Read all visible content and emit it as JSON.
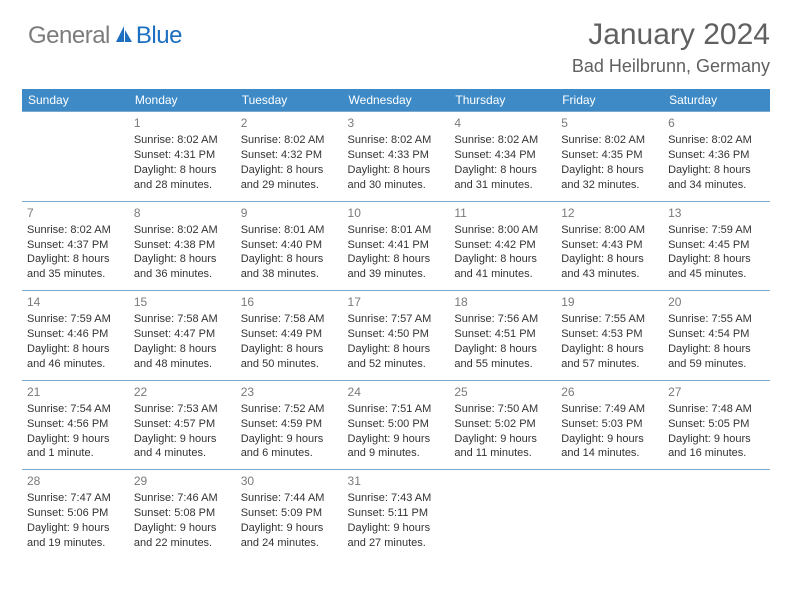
{
  "logo": {
    "general": "General",
    "blue": "Blue"
  },
  "title": "January 2024",
  "location": "Bad Heilbrunn, Germany",
  "colors": {
    "header_bg": "#3d8ac7",
    "header_text": "#ffffff",
    "rule": "#7ba8cf",
    "logo_gray": "#7c7c7c",
    "logo_blue": "#1d6fc0",
    "title_color": "#606060",
    "body_text": "#333333"
  },
  "weekdays": [
    "Sunday",
    "Monday",
    "Tuesday",
    "Wednesday",
    "Thursday",
    "Friday",
    "Saturday"
  ],
  "start_offset": 1,
  "days": [
    {
      "n": 1,
      "sunrise": "8:02 AM",
      "sunset": "4:31 PM",
      "dl1": "Daylight: 8 hours",
      "dl2": "and 28 minutes."
    },
    {
      "n": 2,
      "sunrise": "8:02 AM",
      "sunset": "4:32 PM",
      "dl1": "Daylight: 8 hours",
      "dl2": "and 29 minutes."
    },
    {
      "n": 3,
      "sunrise": "8:02 AM",
      "sunset": "4:33 PM",
      "dl1": "Daylight: 8 hours",
      "dl2": "and 30 minutes."
    },
    {
      "n": 4,
      "sunrise": "8:02 AM",
      "sunset": "4:34 PM",
      "dl1": "Daylight: 8 hours",
      "dl2": "and 31 minutes."
    },
    {
      "n": 5,
      "sunrise": "8:02 AM",
      "sunset": "4:35 PM",
      "dl1": "Daylight: 8 hours",
      "dl2": "and 32 minutes."
    },
    {
      "n": 6,
      "sunrise": "8:02 AM",
      "sunset": "4:36 PM",
      "dl1": "Daylight: 8 hours",
      "dl2": "and 34 minutes."
    },
    {
      "n": 7,
      "sunrise": "8:02 AM",
      "sunset": "4:37 PM",
      "dl1": "Daylight: 8 hours",
      "dl2": "and 35 minutes."
    },
    {
      "n": 8,
      "sunrise": "8:02 AM",
      "sunset": "4:38 PM",
      "dl1": "Daylight: 8 hours",
      "dl2": "and 36 minutes."
    },
    {
      "n": 9,
      "sunrise": "8:01 AM",
      "sunset": "4:40 PM",
      "dl1": "Daylight: 8 hours",
      "dl2": "and 38 minutes."
    },
    {
      "n": 10,
      "sunrise": "8:01 AM",
      "sunset": "4:41 PM",
      "dl1": "Daylight: 8 hours",
      "dl2": "and 39 minutes."
    },
    {
      "n": 11,
      "sunrise": "8:00 AM",
      "sunset": "4:42 PM",
      "dl1": "Daylight: 8 hours",
      "dl2": "and 41 minutes."
    },
    {
      "n": 12,
      "sunrise": "8:00 AM",
      "sunset": "4:43 PM",
      "dl1": "Daylight: 8 hours",
      "dl2": "and 43 minutes."
    },
    {
      "n": 13,
      "sunrise": "7:59 AM",
      "sunset": "4:45 PM",
      "dl1": "Daylight: 8 hours",
      "dl2": "and 45 minutes."
    },
    {
      "n": 14,
      "sunrise": "7:59 AM",
      "sunset": "4:46 PM",
      "dl1": "Daylight: 8 hours",
      "dl2": "and 46 minutes."
    },
    {
      "n": 15,
      "sunrise": "7:58 AM",
      "sunset": "4:47 PM",
      "dl1": "Daylight: 8 hours",
      "dl2": "and 48 minutes."
    },
    {
      "n": 16,
      "sunrise": "7:58 AM",
      "sunset": "4:49 PM",
      "dl1": "Daylight: 8 hours",
      "dl2": "and 50 minutes."
    },
    {
      "n": 17,
      "sunrise": "7:57 AM",
      "sunset": "4:50 PM",
      "dl1": "Daylight: 8 hours",
      "dl2": "and 52 minutes."
    },
    {
      "n": 18,
      "sunrise": "7:56 AM",
      "sunset": "4:51 PM",
      "dl1": "Daylight: 8 hours",
      "dl2": "and 55 minutes."
    },
    {
      "n": 19,
      "sunrise": "7:55 AM",
      "sunset": "4:53 PM",
      "dl1": "Daylight: 8 hours",
      "dl2": "and 57 minutes."
    },
    {
      "n": 20,
      "sunrise": "7:55 AM",
      "sunset": "4:54 PM",
      "dl1": "Daylight: 8 hours",
      "dl2": "and 59 minutes."
    },
    {
      "n": 21,
      "sunrise": "7:54 AM",
      "sunset": "4:56 PM",
      "dl1": "Daylight: 9 hours",
      "dl2": "and 1 minute."
    },
    {
      "n": 22,
      "sunrise": "7:53 AM",
      "sunset": "4:57 PM",
      "dl1": "Daylight: 9 hours",
      "dl2": "and 4 minutes."
    },
    {
      "n": 23,
      "sunrise": "7:52 AM",
      "sunset": "4:59 PM",
      "dl1": "Daylight: 9 hours",
      "dl2": "and 6 minutes."
    },
    {
      "n": 24,
      "sunrise": "7:51 AM",
      "sunset": "5:00 PM",
      "dl1": "Daylight: 9 hours",
      "dl2": "and 9 minutes."
    },
    {
      "n": 25,
      "sunrise": "7:50 AM",
      "sunset": "5:02 PM",
      "dl1": "Daylight: 9 hours",
      "dl2": "and 11 minutes."
    },
    {
      "n": 26,
      "sunrise": "7:49 AM",
      "sunset": "5:03 PM",
      "dl1": "Daylight: 9 hours",
      "dl2": "and 14 minutes."
    },
    {
      "n": 27,
      "sunrise": "7:48 AM",
      "sunset": "5:05 PM",
      "dl1": "Daylight: 9 hours",
      "dl2": "and 16 minutes."
    },
    {
      "n": 28,
      "sunrise": "7:47 AM",
      "sunset": "5:06 PM",
      "dl1": "Daylight: 9 hours",
      "dl2": "and 19 minutes."
    },
    {
      "n": 29,
      "sunrise": "7:46 AM",
      "sunset": "5:08 PM",
      "dl1": "Daylight: 9 hours",
      "dl2": "and 22 minutes."
    },
    {
      "n": 30,
      "sunrise": "7:44 AM",
      "sunset": "5:09 PM",
      "dl1": "Daylight: 9 hours",
      "dl2": "and 24 minutes."
    },
    {
      "n": 31,
      "sunrise": "7:43 AM",
      "sunset": "5:11 PM",
      "dl1": "Daylight: 9 hours",
      "dl2": "and 27 minutes."
    }
  ]
}
